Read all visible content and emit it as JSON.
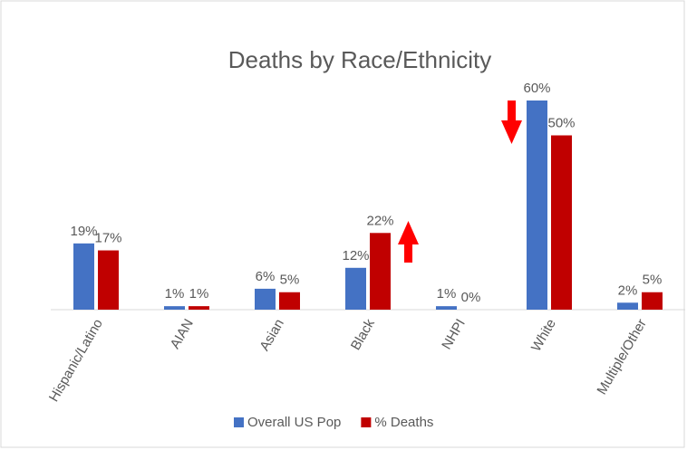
{
  "chart_data": {
    "type": "bar",
    "title": "Deaths by Race/Ethnicity",
    "categories": [
      "Hispanic/Latino",
      "AIAN",
      "Asian",
      "Black",
      "NHPI",
      "White",
      "Multiple/Other"
    ],
    "series": [
      {
        "name": "Overall US Pop",
        "color": "#4472c4",
        "values": [
          19,
          1,
          6,
          12,
          1,
          60,
          2
        ],
        "value_labels": [
          "19%",
          "1%",
          "6%",
          "12%",
          "1%",
          "60%",
          "2%"
        ]
      },
      {
        "name": "% Deaths",
        "color": "#c00000",
        "values": [
          17,
          1,
          5,
          22,
          0,
          50,
          5
        ],
        "value_labels": [
          "17%",
          "1%",
          "5%",
          "22%",
          "0%",
          "50%",
          "5%"
        ]
      }
    ],
    "legend": "bottom"
  }
}
